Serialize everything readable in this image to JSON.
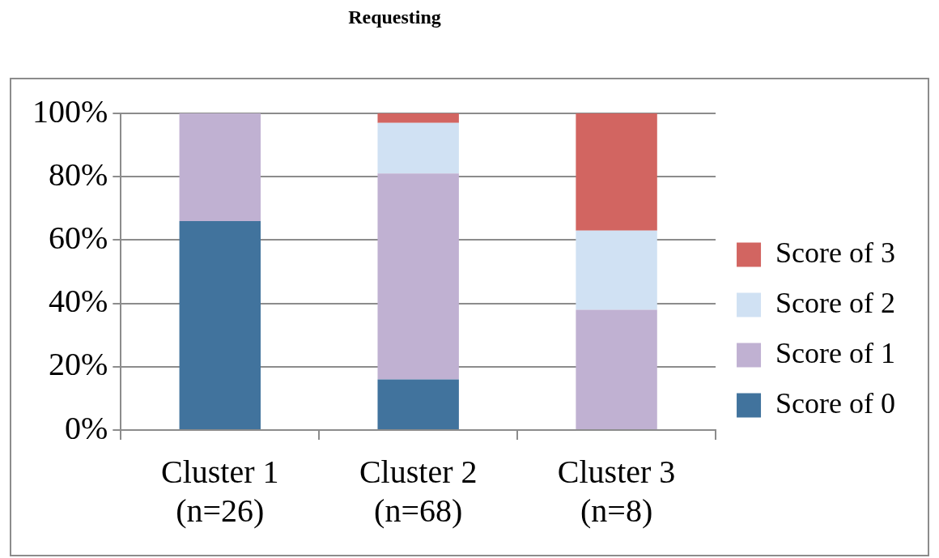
{
  "chart_data": {
    "type": "bar",
    "title": "Requesting",
    "stacked": true,
    "categories": [
      "Cluster 1 (n=26)",
      "Cluster 2 (n=68)",
      "Cluster 3 (n=8)"
    ],
    "series": [
      {
        "name": "Score of 0",
        "color": "#41739d",
        "values": [
          66,
          16,
          0
        ]
      },
      {
        "name": "Score of 1",
        "color": "#c0b1d2",
        "values": [
          34,
          65,
          38
        ]
      },
      {
        "name": "Score of 2",
        "color": "#d0e1f3",
        "values": [
          0,
          16,
          25
        ]
      },
      {
        "name": "Score of 3",
        "color": "#d26561",
        "values": [
          0,
          3,
          37
        ]
      }
    ],
    "ylim": [
      0,
      100
    ],
    "yticks": [
      {
        "value": 0,
        "label": "0%"
      },
      {
        "value": 20,
        "label": "20%"
      },
      {
        "value": 40,
        "label": "40%"
      },
      {
        "value": 60,
        "label": "60%"
      },
      {
        "value": 80,
        "label": "80%"
      },
      {
        "value": 100,
        "label": "100%"
      }
    ],
    "grid": "y",
    "legend": "right"
  }
}
